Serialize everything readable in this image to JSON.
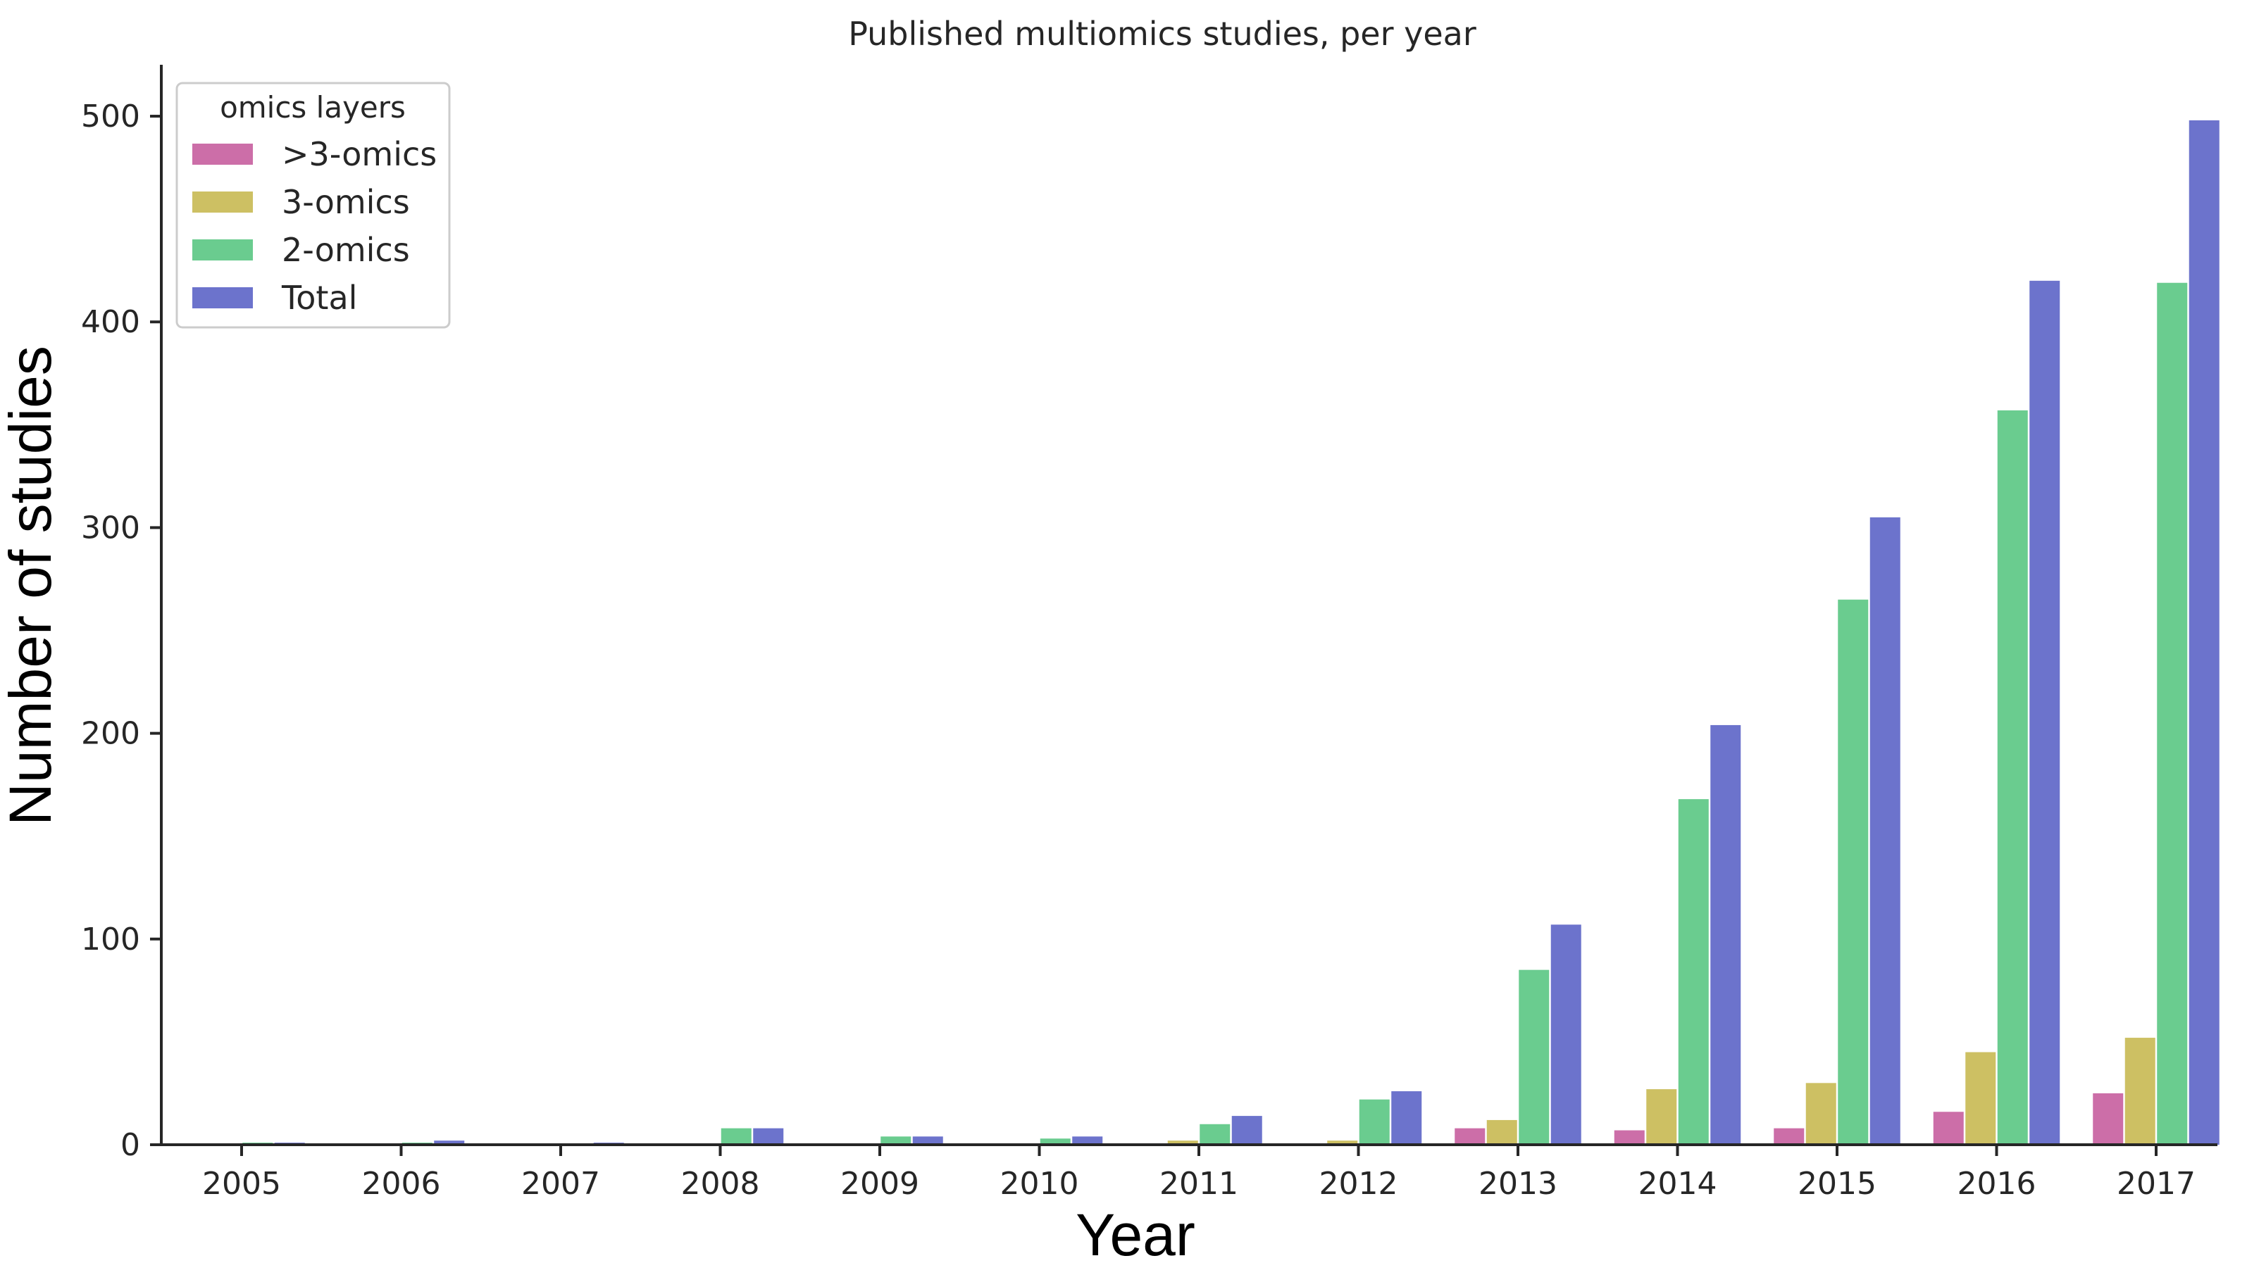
{
  "chart_data": {
    "type": "bar",
    "title": "Published multiomics studies, per year",
    "xlabel": "Year",
    "ylabel": "Number of studies",
    "ylim": [
      0,
      525
    ],
    "yticks": [
      0,
      100,
      200,
      300,
      400,
      500
    ],
    "categories": [
      "2005",
      "2006",
      "2007",
      "2008",
      "2009",
      "2010",
      "2011",
      "2012",
      "2013",
      "2014",
      "2015",
      "2016",
      "2017"
    ],
    "legend": {
      "title": "omics layers",
      "position": "upper-left"
    },
    "grid": false,
    "series": [
      {
        "name": ">3-omics",
        "color": "#cc6ea8",
        "values": [
          0,
          0,
          0,
          0,
          0,
          0,
          0,
          0,
          8,
          7,
          8,
          16,
          25
        ]
      },
      {
        "name": "3-omics",
        "color": "#cdc063",
        "values": [
          0,
          0,
          0,
          0,
          0,
          0,
          2,
          2,
          12,
          27,
          30,
          45,
          52
        ]
      },
      {
        "name": "2-omics",
        "color": "#6acc8f",
        "values": [
          1,
          1,
          0,
          8,
          4,
          3,
          10,
          22,
          85,
          168,
          265,
          357,
          419
        ]
      },
      {
        "name": "Total",
        "color": "#6c73cc",
        "values": [
          1,
          2,
          1,
          8,
          4,
          4,
          14,
          26,
          107,
          204,
          305,
          420,
          498
        ]
      }
    ]
  }
}
